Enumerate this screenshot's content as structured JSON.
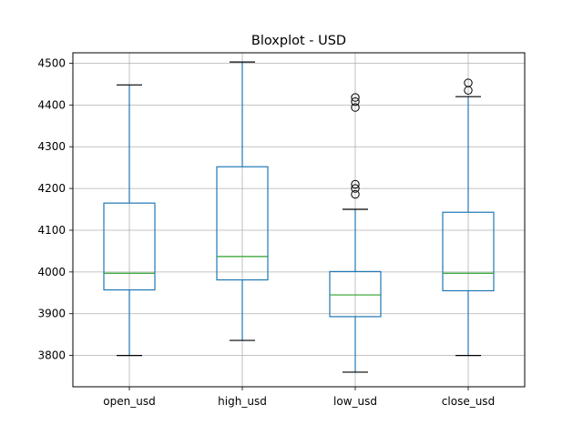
{
  "chart_data": {
    "type": "boxplot",
    "title": "Bloxplot - USD",
    "xlabel": "",
    "ylabel": "",
    "categories": [
      "open_usd",
      "high_usd",
      "low_usd",
      "close_usd"
    ],
    "ylim": [
      3725,
      4525
    ],
    "yticks": [
      3800,
      3900,
      4000,
      4100,
      4200,
      4300,
      4400,
      4500
    ],
    "grid": true,
    "colors": {
      "box": "#1f77b4",
      "median": "#2ca02c",
      "whisker_cap": "#000000",
      "grid": "#b0b0b0",
      "flier": "#000000"
    },
    "boxes": [
      {
        "name": "open_usd",
        "whisker_low": 3800,
        "q1": 3957,
        "median": 3997,
        "q3": 4165,
        "whisker_high": 4448,
        "outliers": []
      },
      {
        "name": "high_usd",
        "whisker_low": 3836,
        "q1": 3981,
        "median": 4037,
        "q3": 4252,
        "whisker_high": 4503,
        "outliers": []
      },
      {
        "name": "low_usd",
        "whisker_low": 3760,
        "q1": 3893,
        "median": 3945,
        "q3": 4001,
        "whisker_high": 4150,
        "outliers": [
          4186,
          4200,
          4210,
          4394,
          4408,
          4418
        ]
      },
      {
        "name": "close_usd",
        "whisker_low": 3800,
        "q1": 3955,
        "median": 3997,
        "q3": 4143,
        "whisker_high": 4420,
        "outliers": [
          4435,
          4453
        ]
      }
    ]
  }
}
